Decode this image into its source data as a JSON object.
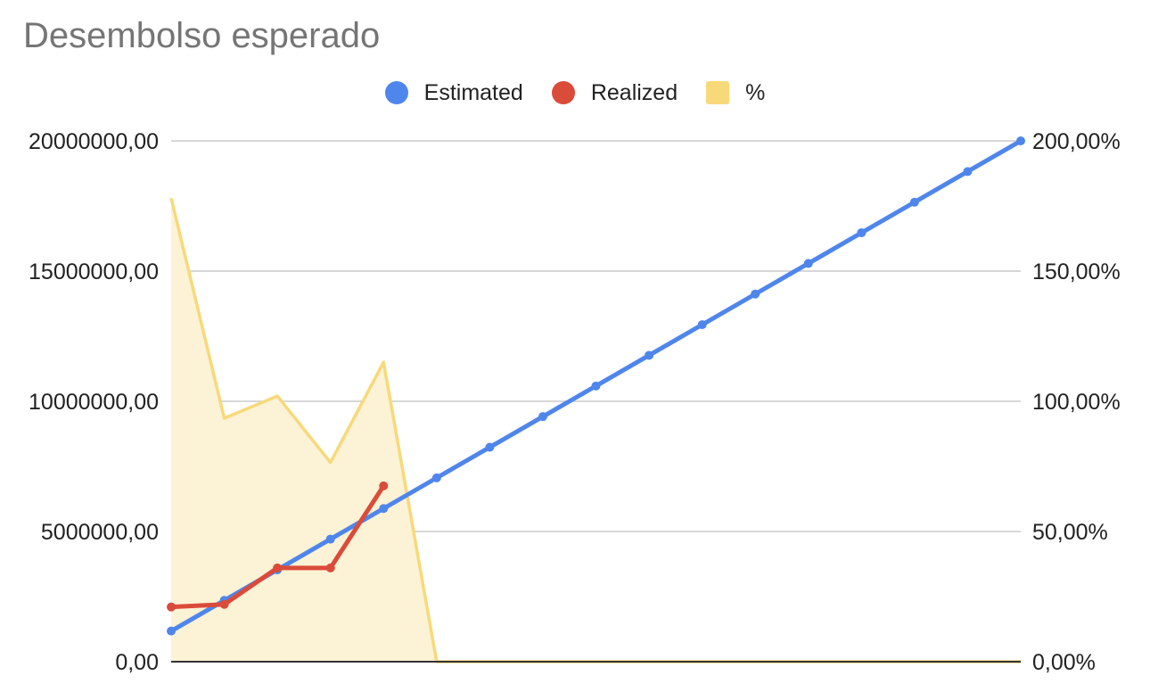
{
  "chart_data": {
    "type": "line",
    "title": "Desembolso esperado",
    "xlabel": "",
    "ylabel": "",
    "legend_position": "top",
    "grid": true,
    "x_count": 17,
    "ylim_left": [
      0,
      20000000
    ],
    "ylim_right": [
      0,
      2
    ],
    "y_ticks_left": [
      "0,00",
      "5000000,00",
      "10000000,00",
      "15000000,00",
      "20000000,00"
    ],
    "y_ticks_right": [
      "0,00%",
      "50,00%",
      "100,00%",
      "150,00%",
      "200,00%"
    ],
    "series": [
      {
        "name": "Estimated",
        "type": "line",
        "axis": "left",
        "color": "#4f86ec",
        "values": [
          1176470,
          2352940,
          3529410,
          4705880,
          5882350,
          7058820,
          8235290,
          9411760,
          10588240,
          11764710,
          12941180,
          14117650,
          15294120,
          16470590,
          17647060,
          18823530,
          20000000
        ]
      },
      {
        "name": "Realized",
        "type": "line",
        "axis": "left",
        "color": "#db4b3a",
        "values": [
          2100000,
          2200000,
          3600000,
          3600000,
          6750000,
          null,
          null,
          null,
          null,
          null,
          null,
          null,
          null,
          null,
          null,
          null,
          null
        ]
      },
      {
        "name": "%",
        "type": "area",
        "axis": "right",
        "color": "#f8d97a",
        "fill": "#fcf2d5",
        "values": [
          1.78,
          0.935,
          1.02,
          0.765,
          1.15,
          0,
          0,
          0,
          0,
          0,
          0,
          0,
          0,
          0,
          0,
          0,
          0
        ]
      }
    ]
  }
}
